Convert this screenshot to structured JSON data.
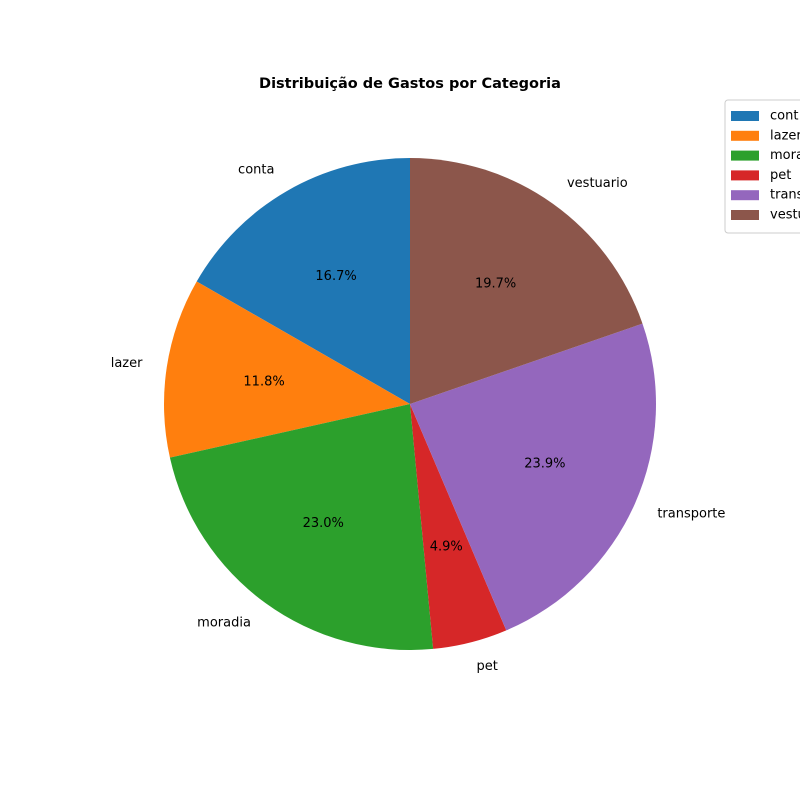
{
  "chart_data": {
    "type": "pie",
    "title": "Distribuição de Gastos por Categoria",
    "start_angle_deg": 90,
    "direction": "counterclockwise",
    "legend_position": "top-right",
    "slices": [
      {
        "label": "conta",
        "value": 16.7,
        "pct_text": "16.7%",
        "color": "#1f77b4",
        "legend_text": "cont"
      },
      {
        "label": "lazer",
        "value": 11.8,
        "pct_text": "11.8%",
        "color": "#ff7f0e",
        "legend_text": "lazer"
      },
      {
        "label": "moradia",
        "value": 23.0,
        "pct_text": "23.0%",
        "color": "#2ca02c",
        "legend_text": "mora"
      },
      {
        "label": "pet",
        "value": 4.9,
        "pct_text": "4.9%",
        "color": "#d62728",
        "legend_text": "pet"
      },
      {
        "label": "transporte",
        "value": 23.9,
        "pct_text": "23.9%",
        "color": "#9467bd",
        "legend_text": "trans"
      },
      {
        "label": "vestuario",
        "value": 19.7,
        "pct_text": "19.7%",
        "color": "#8c564b",
        "legend_text": "vestu"
      }
    ]
  }
}
